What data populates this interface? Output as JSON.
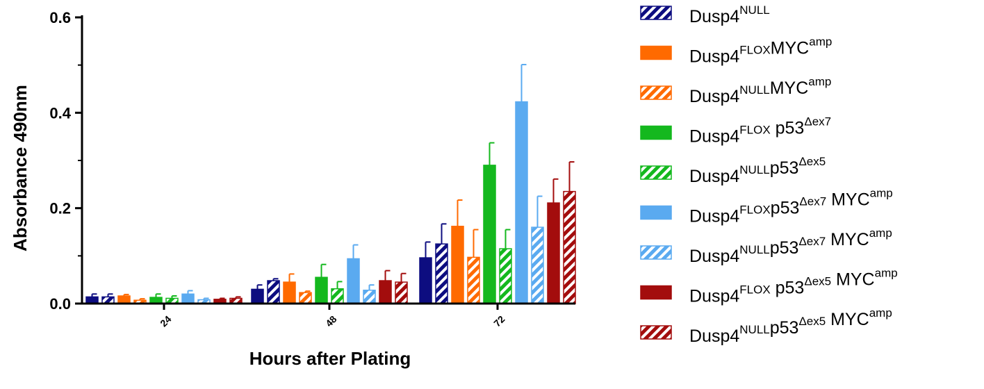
{
  "chart_data": {
    "type": "bar",
    "xlabel": "Hours after Plating",
    "ylabel": "Absorbance 490nm",
    "categories": [
      "24",
      "48",
      "72"
    ],
    "ylim": [
      0,
      0.6
    ],
    "yticks": [
      "0.0",
      "0.2",
      "0.4",
      "0.6"
    ],
    "legend_position": "right",
    "series": [
      {
        "legend": [
          [
            "t",
            "Dusp4"
          ],
          [
            "s",
            "NULL"
          ]
        ],
        "color": "#0d0d80",
        "hatched": true,
        "values": [
          0.014,
          0.048,
          0.125
        ],
        "errors": [
          0.006,
          0.004,
          0.042
        ]
      },
      {
        "legend": [
          [
            "t",
            "Dusp4"
          ],
          [
            "s",
            "FLOX"
          ],
          [
            "t",
            "MYC"
          ],
          [
            "s",
            "amp"
          ]
        ],
        "color": "#ff6a00",
        "hatched": false,
        "values": [
          0.016,
          0.045,
          0.162
        ],
        "errors": [
          0.003,
          0.017,
          0.055
        ]
      },
      {
        "legend": [
          [
            "t",
            "Dusp4"
          ],
          [
            "s",
            "NULL"
          ],
          [
            "t",
            "MYC"
          ],
          [
            "s",
            "amp"
          ]
        ],
        "color": "#ff6a00",
        "hatched": true,
        "values": [
          0.007,
          0.023,
          0.097
        ],
        "errors": [
          0.003,
          0.003,
          0.058
        ]
      },
      {
        "legend": [
          [
            "t",
            "Dusp4"
          ],
          [
            "s",
            "FLOX"
          ],
          [
            "t",
            " p53"
          ],
          [
            "s",
            "Δex7"
          ]
        ],
        "color": "#14b81e",
        "hatched": false,
        "values": [
          0.013,
          0.055,
          0.29
        ],
        "errors": [
          0.007,
          0.027,
          0.047
        ]
      },
      {
        "legend": [
          [
            "t",
            "Dusp4"
          ],
          [
            "s",
            "NULL"
          ],
          [
            "t",
            "p53"
          ],
          [
            "s",
            "Δex5"
          ]
        ],
        "color": "#14b81e",
        "hatched": true,
        "values": [
          0.011,
          0.031,
          0.115
        ],
        "errors": [
          0.005,
          0.015,
          0.04
        ]
      },
      {
        "legend": [
          [
            "t",
            "Dusp4"
          ],
          [
            "s",
            "FLOX"
          ],
          [
            "t",
            "p53"
          ],
          [
            "s",
            "Δex7"
          ],
          [
            "t",
            " MYC"
          ],
          [
            "s",
            "amp"
          ]
        ],
        "color": "#5aaaf0",
        "hatched": false,
        "values": [
          0.02,
          0.094,
          0.423
        ],
        "errors": [
          0.007,
          0.029,
          0.078
        ]
      },
      {
        "legend": [
          [
            "t",
            "Dusp4"
          ],
          [
            "s",
            "NULL"
          ],
          [
            "t",
            "p53"
          ],
          [
            "s",
            "Δex7"
          ],
          [
            "t",
            " MYC"
          ],
          [
            "s",
            "amp"
          ]
        ],
        "color": "#5aaaf0",
        "hatched": true,
        "values": [
          0.008,
          0.028,
          0.16
        ],
        "errors": [
          0.003,
          0.011,
          0.065
        ]
      },
      {
        "legend": [
          [
            "t",
            "Dusp4"
          ],
          [
            "s",
            "FLOX"
          ],
          [
            "t",
            " p53"
          ],
          [
            "s",
            "Δex5"
          ],
          [
            "t",
            " MYC"
          ],
          [
            "s",
            "amp"
          ]
        ],
        "color": "#a30d0d",
        "hatched": false,
        "values": [
          0.009,
          0.048,
          0.211
        ],
        "errors": [
          0.002,
          0.021,
          0.05
        ]
      },
      {
        "legend": [
          [
            "t",
            "Dusp4"
          ],
          [
            "s",
            "NULL"
          ],
          [
            "t",
            "p53"
          ],
          [
            "s",
            "Δex5"
          ],
          [
            "t",
            " MYC"
          ],
          [
            "s",
            "amp"
          ]
        ],
        "color": "#a30d0d",
        "hatched": true,
        "values": [
          0.011,
          0.045,
          0.235
        ],
        "errors": [
          0.003,
          0.018,
          0.062
        ]
      }
    ],
    "leading_bar": {
      "color": "#0d0d80",
      "hatched": false,
      "values": [
        0.014,
        0.03,
        0.096
      ],
      "errors": [
        0.006,
        0.009,
        0.033
      ]
    }
  }
}
